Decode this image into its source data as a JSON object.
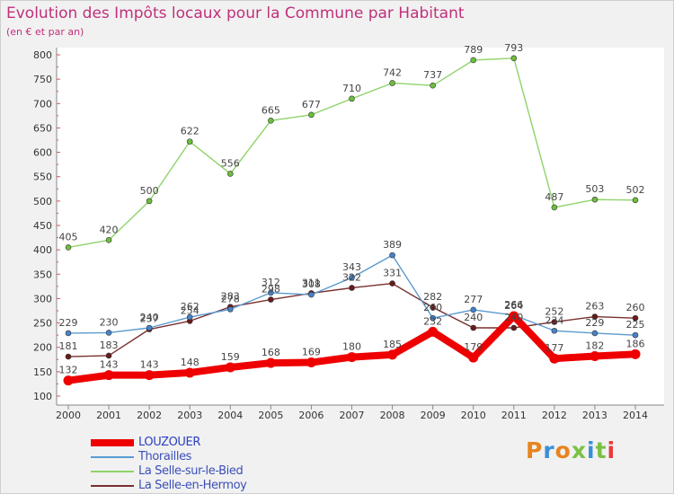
{
  "title": "Evolution des Impôts locaux pour la Commune par Habitant",
  "subtitle": "(en € et par an)",
  "logo": {
    "text": "Proxiti",
    "colors": [
      "#e8841e",
      "#3a8fd6",
      "#e8841e",
      "#7ac143",
      "#3a8fd6",
      "#7ac143",
      "#e83a3a"
    ]
  },
  "chart_data": {
    "type": "line",
    "title": "Evolution des Impôts locaux pour la Commune par Habitant",
    "subtitle": "(en € et par an)",
    "xlabel": "",
    "ylabel": "",
    "x": [
      2000,
      2001,
      2002,
      2003,
      2004,
      2005,
      2006,
      2007,
      2008,
      2009,
      2010,
      2011,
      2012,
      2013,
      2014
    ],
    "x_labels": [
      "2000",
      "2001",
      "2002",
      "2003",
      "2004",
      "2005",
      "2006",
      "2007",
      "2008",
      "2009",
      "2010",
      "2011",
      "2012",
      "2013",
      "2014"
    ],
    "ylim": [
      100,
      800
    ],
    "yticks": [
      100,
      150,
      200,
      250,
      300,
      350,
      400,
      450,
      500,
      550,
      600,
      650,
      700,
      750,
      800
    ],
    "grid": false,
    "legend_position": "bottom-left",
    "series": [
      {
        "name": "LOUZOUER",
        "color": "#ee0000",
        "marker": "#ee0000",
        "values": [
          132,
          143,
          143,
          148,
          159,
          168,
          169,
          180,
          185,
          232,
          179,
          264,
          177,
          182,
          186
        ]
      },
      {
        "name": "Thorailles",
        "color": "#5a9bd0",
        "marker": "#4682c8",
        "values": [
          229,
          230,
          240,
          262,
          278,
          312,
          308,
          343,
          389,
          260,
          277,
          266,
          234,
          229,
          225
        ]
      },
      {
        "name": "La Selle-sur-le-Bied",
        "color": "#8fd36a",
        "marker": "#6cbf3d",
        "values": [
          405,
          420,
          500,
          622,
          556,
          665,
          677,
          710,
          742,
          737,
          789,
          793,
          487,
          503,
          502
        ]
      },
      {
        "name": "La Selle-en-Hermoy",
        "color": "#7a2f2f",
        "marker": "#6a1a1a",
        "values": [
          181,
          183,
          237,
          254,
          283,
          298,
          311,
          322,
          331,
          282,
          240,
          240,
          252,
          263,
          260
        ]
      }
    ]
  }
}
